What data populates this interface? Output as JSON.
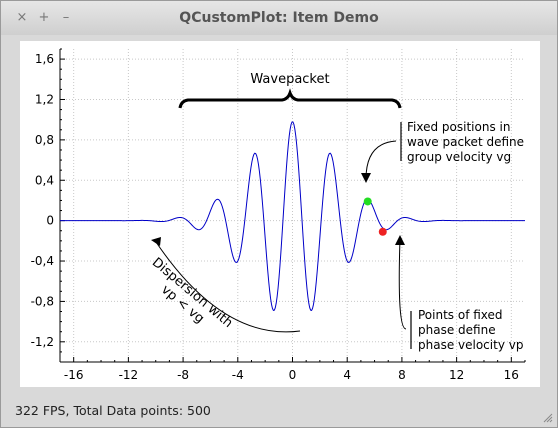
{
  "window": {
    "title": "QCustomPlot: Item Demo",
    "buttons": {
      "close": "×",
      "maximize": "+",
      "minimize": "–"
    }
  },
  "status": {
    "text": "322 FPS, Total Data points: 500"
  },
  "chart_data": {
    "type": "line",
    "xlim": [
      -17,
      17
    ],
    "ylim": [
      -1.4,
      1.7
    ],
    "xticks": [
      -16,
      -12,
      -8,
      -4,
      0,
      4,
      8,
      12,
      16
    ],
    "xtick_labels": [
      "-16",
      "-12",
      "-8",
      "-4",
      "0",
      "4",
      "8",
      "12",
      "16"
    ],
    "yticks": [
      1.6,
      1.2,
      0.8,
      0.4,
      0,
      -0.4,
      -0.8,
      -1.2
    ],
    "ytick_labels": [
      "1,6",
      "1,2",
      "0,8",
      "0,4",
      "0",
      "-0,4",
      "-0,8",
      "-1,2"
    ],
    "grid": true,
    "series": [
      {
        "color": "#0000c8",
        "points": 500,
        "x_range": [
          -17,
          17
        ]
      }
    ],
    "markers": [
      {
        "x": 5.5,
        "y": 0.19,
        "color": "#22dd22"
      },
      {
        "x": 6.6,
        "y": -0.11,
        "color": "#ee2222"
      }
    ],
    "annotations": {
      "wavepacket": "Wavepacket",
      "group_velocity": [
        "Fixed positions in",
        "wave packet define",
        "group velocity vg"
      ],
      "phase_velocity": [
        "Points of fixed",
        "phase define",
        "phase velocity vp"
      ],
      "dispersion": [
        "Dispersion with",
        "vp < vg"
      ]
    }
  }
}
